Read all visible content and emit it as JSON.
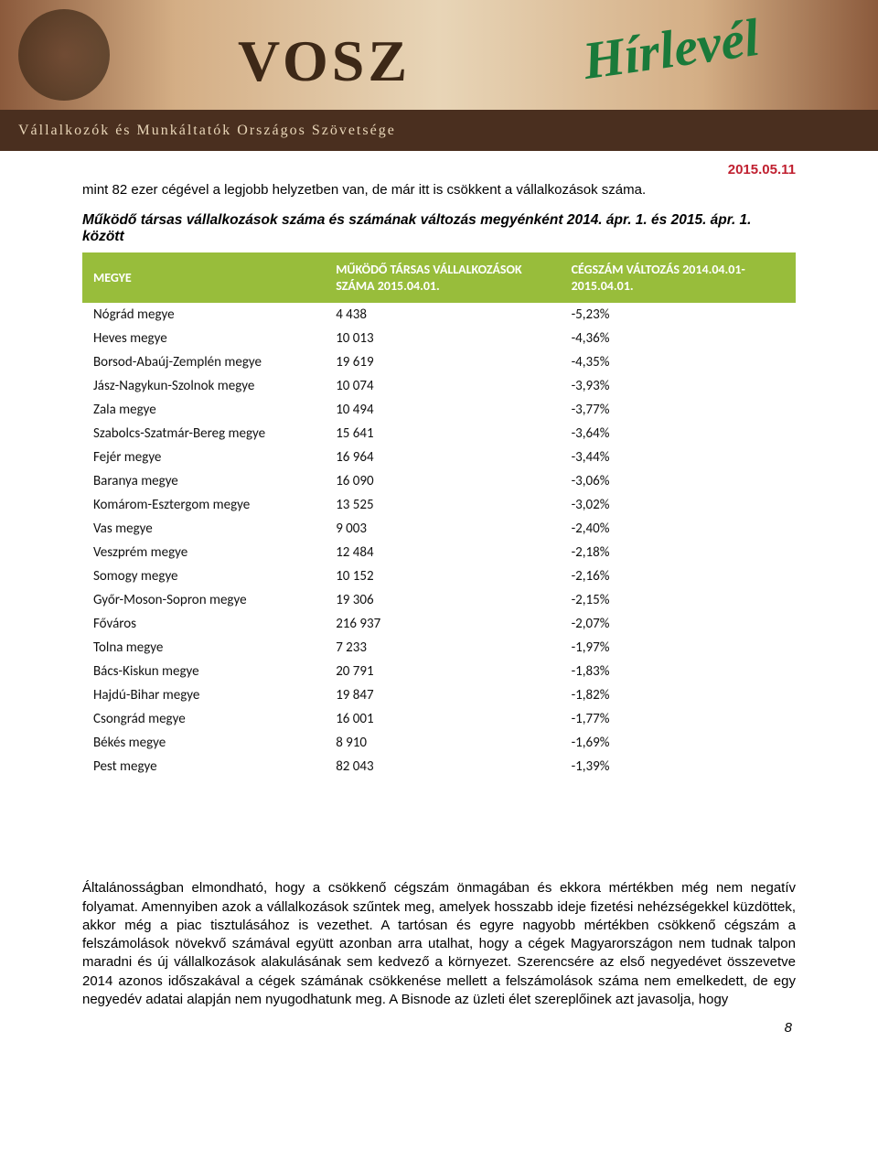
{
  "banner": {
    "logo_text": "VOSZ",
    "hirlevel": "Hírlevél",
    "subtitle": "Vállalkozók és Munkáltatók Országos Szövetsége"
  },
  "date": "2015.05.11",
  "intro": "mint 82 ezer cégével a legjobb helyzetben van, de már itt is csökkent a vállalkozások száma.",
  "caption": "Működő társas vállalkozások száma és számának változás megyénként 2014. ápr. 1. és 2015. ápr. 1. között",
  "table": {
    "header_bg": "#98bd3b",
    "header_color": "#ffffff",
    "row_font_size": 15,
    "header_font_size": 14,
    "columns": [
      {
        "key": "megye",
        "label": "MEGYE"
      },
      {
        "key": "count",
        "label": "MŰKÖDŐ TÁRSAS VÁLLALKOZÁSOK SZÁMA 2015.04.01."
      },
      {
        "key": "change",
        "label": "CÉGSZÁM VÁLTOZÁS 2014.04.01-2015.04.01."
      }
    ],
    "rows": [
      {
        "megye": "Nógrád megye",
        "count": "4 438",
        "change": "-5,23%"
      },
      {
        "megye": "Heves megye",
        "count": "10 013",
        "change": "-4,36%"
      },
      {
        "megye": "Borsod-Abaúj-Zemplén megye",
        "count": "19 619",
        "change": "-4,35%"
      },
      {
        "megye": "Jász-Nagykun-Szolnok megye",
        "count": "10 074",
        "change": "-3,93%"
      },
      {
        "megye": "Zala megye",
        "count": "10 494",
        "change": "-3,77%"
      },
      {
        "megye": "Szabolcs-Szatmár-Bereg megye",
        "count": "15 641",
        "change": "-3,64%"
      },
      {
        "megye": "Fejér megye",
        "count": "16 964",
        "change": "-3,44%"
      },
      {
        "megye": "Baranya megye",
        "count": "16 090",
        "change": "-3,06%"
      },
      {
        "megye": "Komárom-Esztergom megye",
        "count": "13 525",
        "change": "-3,02%"
      },
      {
        "megye": "Vas megye",
        "count": "9 003",
        "change": "-2,40%"
      },
      {
        "megye": "Veszprém megye",
        "count": "12 484",
        "change": "-2,18%"
      },
      {
        "megye": "Somogy megye",
        "count": "10 152",
        "change": "-2,16%"
      },
      {
        "megye": "Győr-Moson-Sopron megye",
        "count": "19 306",
        "change": "-2,15%"
      },
      {
        "megye": "Főváros",
        "count": "216 937",
        "change": "-2,07%"
      },
      {
        "megye": "Tolna megye",
        "count": "7 233",
        "change": "-1,97%"
      },
      {
        "megye": "Bács-Kiskun megye",
        "count": "20 791",
        "change": "-1,83%"
      },
      {
        "megye": "Hajdú-Bihar megye",
        "count": "19 847",
        "change": "-1,82%"
      },
      {
        "megye": "Csongrád megye",
        "count": "16 001",
        "change": "-1,77%"
      },
      {
        "megye": "Békés megye",
        "count": "8 910",
        "change": "-1,69%"
      },
      {
        "megye": "Pest megye",
        "count": "82 043",
        "change": "-1,39%"
      }
    ]
  },
  "lower_paragraph": "Általánosságban elmondható, hogy a csökkenő cégszám önmagában és ekkora mértékben még nem negatív folyamat. Amennyiben azok a vállalkozások szűntek meg, amelyek hosszabb ideje fizetési nehézségekkel küzdöttek, akkor még a piac tisztulásához is vezethet. A tartósan és egyre nagyobb mértékben csökkenő cégszám a felszámolások növekvő számával együtt azonban arra utalhat, hogy a cégek Magyarországon nem tudnak talpon maradni és új vállalkozások alakulásának sem kedvező a környezet. Szerencsére az első negyedévet összevetve 2014 azonos időszakával a cégek számának csökkenése mellett a felszámolások száma nem emelkedett, de egy negyedév adatai alapján nem nyugodhatunk meg. A Bisnode az üzleti élet szereplőinek azt javasolja, hogy",
  "page_number": "8"
}
